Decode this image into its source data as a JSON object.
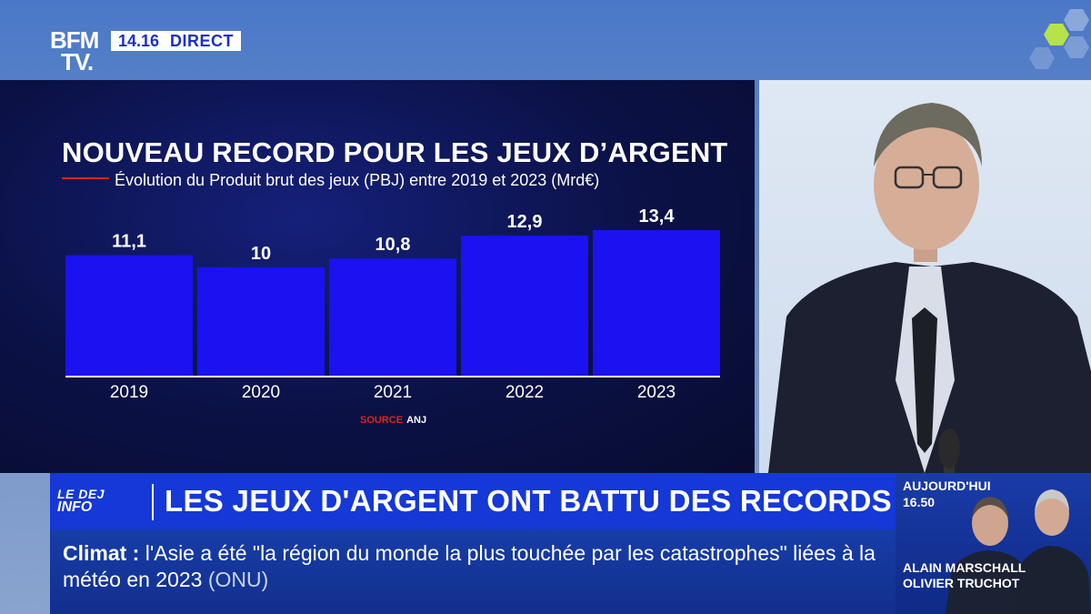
{
  "header": {
    "logo_line1": "BFM",
    "logo_line2": "TV.",
    "time": "14.16",
    "live_label": "DIRECT"
  },
  "chart_data": {
    "type": "bar",
    "title": "NOUVEAU RECORD POUR LES JEUX D’ARGENT",
    "subtitle": "Évolution du Produit brut des jeux (PBJ) entre 2019 et 2023 (Mrd€)",
    "categories": [
      "2019",
      "2020",
      "2021",
      "2022",
      "2023"
    ],
    "values": [
      11.1,
      10,
      10.8,
      12.9,
      13.4
    ],
    "value_labels": [
      "11,1",
      "10",
      "10,8",
      "12,9",
      "13,4"
    ],
    "bar_color": "#1a12f0",
    "source_label": "SOURCE",
    "source_value": "ANJ"
  },
  "lower_third": {
    "show_line1": "LE DEJ",
    "show_line2": "INFO",
    "headline": "LES JEUX D'ARGENT ONT BATTU DES RECORDS"
  },
  "ticker": {
    "keyword": "Climat :",
    "text": "l'Asie a été \"la région du monde la plus touchée par les catastrophes\" liées à la météo en 2023",
    "source": "(ONU)"
  },
  "promo": {
    "label": "AUJOURD'HUI",
    "time": "16.50",
    "presenter_1": "ALAIN MARSCHALL",
    "presenter_2": "OLIVIER TRUCHOT"
  },
  "colors": {
    "brand_blue": "#1538d6",
    "accent_red": "#e0231e",
    "chart_bg": "#0b1145"
  }
}
